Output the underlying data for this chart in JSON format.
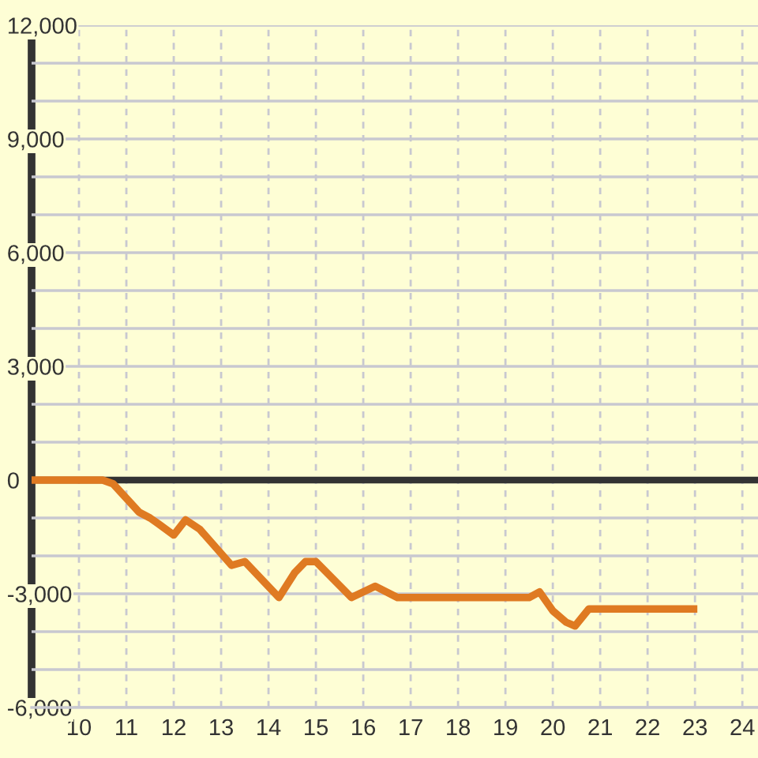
{
  "chart_data": {
    "type": "line",
    "x": [
      9,
      10.5,
      10.72,
      11.27,
      11.5,
      11.67,
      12.0,
      12.25,
      12.55,
      13.22,
      13.5,
      14.22,
      14.55,
      14.78,
      15.0,
      15.75,
      16.25,
      16.72,
      19.5,
      19.72,
      20.0,
      20.28,
      20.47,
      20.76,
      23.05
    ],
    "values": [
      0,
      0,
      -100,
      -850,
      -1000,
      -1150,
      -1450,
      -1050,
      -1300,
      -2250,
      -2150,
      -3100,
      -2450,
      -2150,
      -2150,
      -3100,
      -2800,
      -3100,
      -3100,
      -2950,
      -3450,
      -3750,
      -3850,
      -3400,
      -3400
    ],
    "color": "#df7a22",
    "line_style": "solid",
    "xlim": [
      9,
      24.33
    ],
    "xticks": [
      10,
      11,
      12,
      13,
      14,
      15,
      16,
      17,
      18,
      19,
      20,
      21,
      22,
      23,
      24
    ],
    "ylim": [
      -6000,
      12000
    ],
    "yticks": [
      {
        "value": -6000,
        "label": "-6,000"
      },
      {
        "value": -5000,
        "label": null
      },
      {
        "value": -4000,
        "label": null
      },
      {
        "value": -3000,
        "label": "-3,000"
      },
      {
        "value": -2000,
        "label": null
      },
      {
        "value": -1000,
        "label": null
      },
      0,
      {
        "value": 1000,
        "label": null
      },
      {
        "value": 2000,
        "label": null
      },
      {
        "value": 3000,
        "label": "3,000"
      },
      {
        "value": 4000,
        "label": null
      },
      {
        "value": 5000,
        "label": null
      },
      {
        "value": 6000,
        "label": "6,000"
      },
      {
        "value": 7000,
        "label": null
      },
      {
        "value": 8000,
        "label": null
      },
      {
        "value": 9000,
        "label": "9,000"
      },
      {
        "value": 10000,
        "label": null
      },
      {
        "value": 11000,
        "label": null
      },
      {
        "value": 12000,
        "label": "12,000"
      }
    ],
    "grid": true,
    "ref_lines": [
      {
        "axis": "y",
        "value": 0,
        "color": "#333333"
      }
    ]
  }
}
